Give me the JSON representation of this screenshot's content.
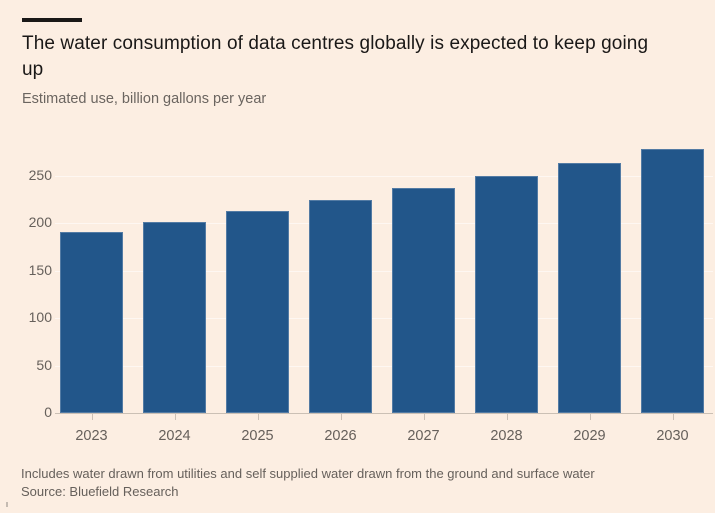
{
  "header": {
    "title": "The water consumption of data centres globally is expected to keep going up",
    "subtitle": "Estimated use, billion gallons per year"
  },
  "chart_data": {
    "type": "bar",
    "categories": [
      "2023",
      "2024",
      "2025",
      "2026",
      "2027",
      "2028",
      "2029",
      "2030"
    ],
    "values": [
      191,
      201,
      213,
      225,
      237,
      250,
      264,
      279
    ],
    "title": "The water consumption of data centres globally is expected to keep going up",
    "xlabel": "",
    "ylabel": "Estimated use, billion gallons per year",
    "ylim": [
      0,
      288
    ],
    "yticks": [
      0,
      50,
      100,
      150,
      200,
      250
    ],
    "grid": "horizontal",
    "legend": "none",
    "bar_color": "#22568A"
  },
  "footer": {
    "note": "Includes water drawn from utilities and self supplied water drawn from the ground and surface water",
    "source": "Source: Bluefield Research"
  },
  "colors": {
    "background": "#FCEEE2",
    "bar": "#22568A",
    "title_text": "#1A1817",
    "muted_text": "#66605B",
    "axis_line": "#CBC0B5",
    "gridline": "rgba(255,255,255,0.55)",
    "brand_bar": "#1A1817"
  }
}
